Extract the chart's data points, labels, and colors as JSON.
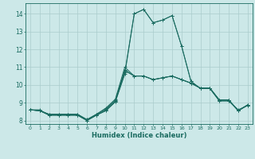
{
  "xlabel": "Humidex (Indice chaleur)",
  "bg_color": "#cce8e8",
  "line_color": "#1a6b60",
  "grid_color": "#aacccc",
  "xlim": [
    -0.5,
    23.5
  ],
  "ylim": [
    7.8,
    14.6
  ],
  "yticks": [
    8,
    9,
    10,
    11,
    12,
    13,
    14
  ],
  "xticks": [
    0,
    1,
    2,
    3,
    4,
    5,
    6,
    7,
    8,
    9,
    10,
    11,
    12,
    13,
    14,
    15,
    16,
    17,
    18,
    19,
    20,
    21,
    22,
    23
  ],
  "series": [
    [
      8.6,
      8.6,
      8.3,
      8.3,
      8.3,
      8.3,
      8.0,
      8.3,
      8.55,
      9.05,
      10.7,
      14.0,
      14.25,
      13.5,
      13.65,
      13.9,
      12.2,
      10.2,
      9.8,
      9.8,
      9.1,
      9.1,
      8.6,
      8.85
    ],
    [
      8.6,
      8.55,
      8.3,
      8.3,
      8.3,
      8.3,
      8.0,
      8.3,
      8.55,
      9.05,
      10.6,
      14.0,
      14.25,
      13.5,
      13.65,
      13.9,
      12.2,
      10.2,
      9.8,
      9.8,
      9.1,
      9.1,
      8.55,
      8.85
    ],
    [
      8.6,
      8.55,
      8.3,
      8.3,
      8.3,
      8.3,
      8.0,
      8.3,
      8.6,
      9.1,
      10.8,
      10.5,
      10.5,
      10.3,
      10.4,
      10.5,
      10.3,
      10.1,
      9.82,
      9.82,
      9.15,
      9.15,
      8.55,
      8.88
    ],
    [
      8.6,
      8.55,
      8.35,
      8.35,
      8.35,
      8.35,
      8.05,
      8.35,
      8.65,
      9.15,
      10.85,
      10.5,
      10.5,
      10.3,
      10.4,
      10.5,
      10.3,
      10.1,
      9.82,
      9.82,
      9.15,
      9.15,
      8.55,
      8.88
    ],
    [
      8.6,
      8.55,
      8.35,
      8.35,
      8.35,
      8.35,
      8.05,
      8.35,
      8.7,
      9.2,
      11.0,
      10.5,
      10.5,
      10.3,
      10.4,
      10.5,
      10.3,
      10.1,
      9.82,
      9.82,
      9.15,
      9.15,
      8.55,
      8.88
    ]
  ]
}
